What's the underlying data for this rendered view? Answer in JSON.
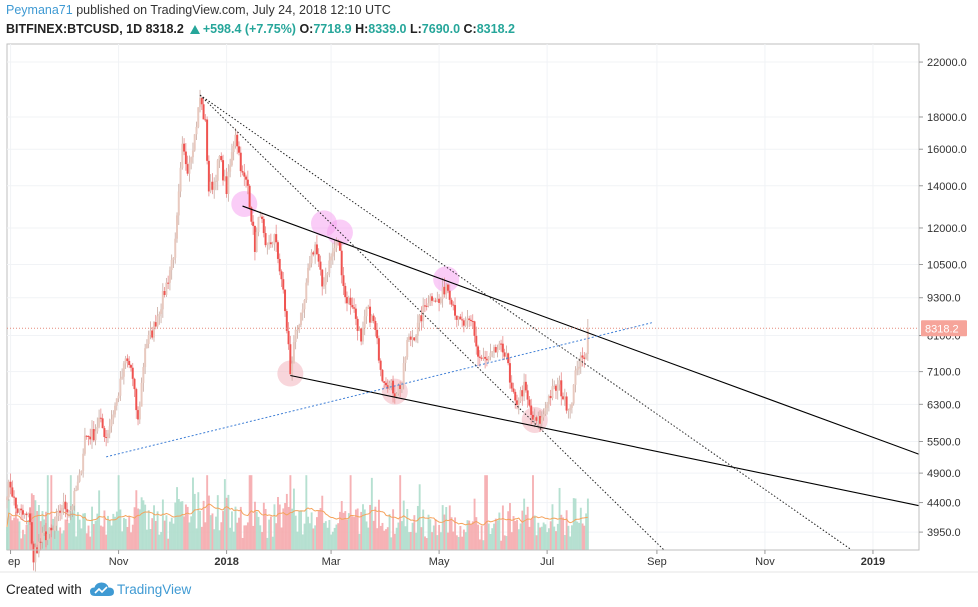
{
  "header": {
    "author": "Peymana71",
    "published_text": "published on TradingView.com, July 24, 2018 12:10 UTC",
    "symbol": "BITFINEX:BTCUSD, 1D",
    "last": "8318.2",
    "change": "+598.4 (+7.75%)",
    "o_label": "O:",
    "o_value": "7718.9",
    "h_label": "H:",
    "h_value": "8339.0",
    "l_label": "L:",
    "l_value": "7690.0",
    "c_label": "C:",
    "c_value": "8318.2"
  },
  "footer": {
    "created_with": "Created with",
    "brand": "TradingView",
    "brand_icon": "cloud-logo-icon"
  },
  "colors": {
    "up": "#26a69a",
    "down": "#ef5350",
    "up_light": "#a5d6c4",
    "down_light": "#f3a7a5",
    "volume_up": "#a9dbc9",
    "volume_down": "#f5a5a8",
    "ma": "#f5a35c",
    "trendline": "#000000",
    "blue_line": "#3f7fd6",
    "highlight_pink": "#f2b5be",
    "highlight_violet": "#f6a4f0",
    "brand": "#3f9ad3"
  },
  "chart_data": {
    "type": "candlestick",
    "scale": "log",
    "price_axis_ticks": [
      "22000.0",
      "18000.0",
      "16000.0",
      "14000.0",
      "12000.0",
      "10500.0",
      "9300.0",
      "8100.0",
      "7100.0",
      "6300.0",
      "5500.0",
      "4900.0",
      "4400.0",
      "3950.0"
    ],
    "price_axis_values": [
      22000,
      18000,
      16000,
      14000,
      12000,
      10500,
      9300,
      8100,
      7100,
      6300,
      5500,
      4900,
      4400,
      3950
    ],
    "time_axis_ticks": [
      "ep",
      "Nov",
      "2018",
      "Mar",
      "May",
      "Jul",
      "Sep",
      "Nov",
      "2019"
    ],
    "time_axis_dates": [
      "2017-09-01",
      "2017-11-01",
      "2018-01-01",
      "2018-03-01",
      "2018-05-01",
      "2018-07-01",
      "2018-09-01",
      "2018-11-01",
      "2019-01-01"
    ],
    "x_range": [
      "2017-08-30",
      "2019-01-27"
    ],
    "y_range": [
      3700,
      23500
    ],
    "last_price_label": "8318.2",
    "last_price": 8318.2,
    "price_path": [
      [
        "2017-08-30",
        4600
      ],
      [
        "2017-09-01",
        4700
      ],
      [
        "2017-09-04",
        4300
      ],
      [
        "2017-09-08",
        4200
      ],
      [
        "2017-09-12",
        4150
      ],
      [
        "2017-09-14",
        3500
      ],
      [
        "2017-09-15",
        3700
      ],
      [
        "2017-09-20",
        3900
      ],
      [
        "2017-09-25",
        3950
      ],
      [
        "2017-09-30",
        4350
      ],
      [
        "2017-10-05",
        4300
      ],
      [
        "2017-10-10",
        4800
      ],
      [
        "2017-10-13",
        5600
      ],
      [
        "2017-10-18",
        5650
      ],
      [
        "2017-10-21",
        5950
      ],
      [
        "2017-10-25",
        5600
      ],
      [
        "2017-10-31",
        6400
      ],
      [
        "2017-11-05",
        7400
      ],
      [
        "2017-11-08",
        7200
      ],
      [
        "2017-11-12",
        5900
      ],
      [
        "2017-11-16",
        7800
      ],
      [
        "2017-11-20",
        8200
      ],
      [
        "2017-11-26",
        9300
      ],
      [
        "2017-11-29",
        10000
      ],
      [
        "2017-12-03",
        11300
      ],
      [
        "2017-12-07",
        16000
      ],
      [
        "2017-12-10",
        15000
      ],
      [
        "2017-12-14",
        16800
      ],
      [
        "2017-12-17",
        19300
      ],
      [
        "2017-12-20",
        17500
      ],
      [
        "2017-12-22",
        13800
      ],
      [
        "2017-12-25",
        14200
      ],
      [
        "2017-12-28",
        15500
      ],
      [
        "2018-01-01",
        13800
      ],
      [
        "2018-01-06",
        17100
      ],
      [
        "2018-01-10",
        14500
      ],
      [
        "2018-01-13",
        14000
      ],
      [
        "2018-01-17",
        11200
      ],
      [
        "2018-01-20",
        12800
      ],
      [
        "2018-01-23",
        11000
      ],
      [
        "2018-01-28",
        11600
      ],
      [
        "2018-02-01",
        10000
      ],
      [
        "2018-02-05",
        7800
      ],
      [
        "2018-02-06",
        6950
      ],
      [
        "2018-02-09",
        8300
      ],
      [
        "2018-02-13",
        8700
      ],
      [
        "2018-02-17",
        10700
      ],
      [
        "2018-02-20",
        11300
      ],
      [
        "2018-02-24",
        9700
      ],
      [
        "2018-03-01",
        10800
      ],
      [
        "2018-03-05",
        11500
      ],
      [
        "2018-03-09",
        9300
      ],
      [
        "2018-03-13",
        9100
      ],
      [
        "2018-03-17",
        8200
      ],
      [
        "2018-03-18",
        7800
      ],
      [
        "2018-03-21",
        8900
      ],
      [
        "2018-03-25",
        8500
      ],
      [
        "2018-03-30",
        7000
      ],
      [
        "2018-04-01",
        6900
      ],
      [
        "2018-04-06",
        6600
      ],
      [
        "2018-04-10",
        6800
      ],
      [
        "2018-04-13",
        7900
      ],
      [
        "2018-04-18",
        8200
      ],
      [
        "2018-04-24",
        9200
      ],
      [
        "2018-04-28",
        9400
      ],
      [
        "2018-05-01",
        9100
      ],
      [
        "2018-05-05",
        9800
      ],
      [
        "2018-05-08",
        9300
      ],
      [
        "2018-05-12",
        8500
      ],
      [
        "2018-05-16",
        8400
      ],
      [
        "2018-05-20",
        8500
      ],
      [
        "2018-05-23",
        7500
      ],
      [
        "2018-05-28",
        7350
      ],
      [
        "2018-06-03",
        7700
      ],
      [
        "2018-06-08",
        7650
      ],
      [
        "2018-06-10",
        6750
      ],
      [
        "2018-06-13",
        6300
      ],
      [
        "2018-06-18",
        6700
      ],
      [
        "2018-06-22",
        6050
      ],
      [
        "2018-06-24",
        5900
      ],
      [
        "2018-06-28",
        5950
      ],
      [
        "2018-07-01",
        6400
      ],
      [
        "2018-07-04",
        6600
      ],
      [
        "2018-07-08",
        6750
      ],
      [
        "2018-07-11",
        6350
      ],
      [
        "2018-07-14",
        6250
      ],
      [
        "2018-07-16",
        6700
      ],
      [
        "2018-07-18",
        7300
      ],
      [
        "2018-07-21",
        7400
      ],
      [
        "2018-07-23",
        7720
      ],
      [
        "2018-07-24",
        8318.2
      ]
    ],
    "trendlines": [
      {
        "style": "solid",
        "points": [
          [
            "2018-01-10",
            13000
          ],
          [
            "2019-01-27",
            5250
          ]
        ]
      },
      {
        "style": "solid",
        "points": [
          [
            "2018-02-06",
            7000
          ],
          [
            "2019-01-27",
            4350
          ]
        ]
      },
      {
        "style": "dotted",
        "points": [
          [
            "2017-12-17",
            19500
          ],
          [
            "2018-12-20",
            3700
          ]
        ]
      },
      {
        "style": "dotted",
        "points": [
          [
            "2017-12-17",
            19500
          ],
          [
            "2018-09-05",
            3700
          ]
        ]
      },
      {
        "style": "dotted-blue",
        "points": [
          [
            "2017-10-25",
            5200
          ],
          [
            "2018-08-30",
            8500
          ]
        ]
      }
    ],
    "highlight_circles": [
      {
        "date": "2018-01-11",
        "price": 13100,
        "kind": "violet"
      },
      {
        "date": "2018-02-25",
        "price": 12200,
        "kind": "violet"
      },
      {
        "date": "2018-03-06",
        "price": 11800,
        "kind": "violet"
      },
      {
        "date": "2018-05-05",
        "price": 9950,
        "kind": "violet"
      },
      {
        "date": "2018-02-06",
        "price": 7050,
        "kind": "pink"
      },
      {
        "date": "2018-04-06",
        "price": 6600,
        "kind": "pink"
      },
      {
        "date": "2018-06-24",
        "price": 5950,
        "kind": "pink"
      }
    ]
  }
}
